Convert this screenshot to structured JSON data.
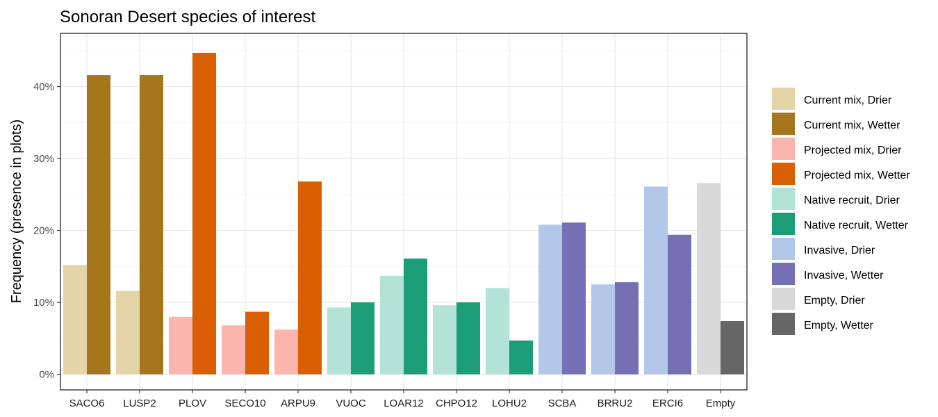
{
  "chart_data": {
    "type": "bar",
    "title": "Sonoran Desert species of interest",
    "xlabel": "",
    "ylabel": "Frequency (presence in plots)",
    "ylim": [
      0,
      0.47
    ],
    "yticks": [
      0,
      0.1,
      0.2,
      0.3,
      0.4
    ],
    "ytick_labels": [
      "0%",
      "10%",
      "20%",
      "30%",
      "40%"
    ],
    "grid": true,
    "legend_position": "right",
    "categories": [
      "SACO6",
      "LUSP2",
      "PLOV",
      "SECO10",
      "ARPU9",
      "VUOC",
      "LOAR12",
      "CHPO12",
      "LOHU2",
      "SCBA",
      "BRRU2",
      "ERCI6",
      "Empty"
    ],
    "legend": [
      {
        "name": "Current mix, Drier",
        "color": "#E5D4A7"
      },
      {
        "name": "Current mix, Wetter",
        "color": "#A6761D"
      },
      {
        "name": "Projected mix, Drier",
        "color": "#FBB4AE"
      },
      {
        "name": "Projected mix, Wetter",
        "color": "#D95F02"
      },
      {
        "name": "Native recruit, Drier",
        "color": "#B3E2D7"
      },
      {
        "name": "Native recruit, Wetter",
        "color": "#1B9E77"
      },
      {
        "name": "Invasive, Drier",
        "color": "#B3C7E8"
      },
      {
        "name": "Invasive, Wetter",
        "color": "#7570B3"
      },
      {
        "name": "Empty, Drier",
        "color": "#D9D9D9"
      },
      {
        "name": "Empty, Wetter",
        "color": "#666666"
      }
    ],
    "bars": [
      {
        "category": "SACO6",
        "drier": 0.152,
        "wetter": 0.416,
        "drier_group": 0,
        "wetter_group": 1
      },
      {
        "category": "LUSP2",
        "drier": 0.116,
        "wetter": 0.416,
        "drier_group": 0,
        "wetter_group": 1
      },
      {
        "category": "PLOV",
        "drier": 0.08,
        "wetter": 0.447,
        "drier_group": 2,
        "wetter_group": 3
      },
      {
        "category": "SECO10",
        "drier": 0.068,
        "wetter": 0.087,
        "drier_group": 2,
        "wetter_group": 3
      },
      {
        "category": "ARPU9",
        "drier": 0.062,
        "wetter": 0.268,
        "drier_group": 2,
        "wetter_group": 3
      },
      {
        "category": "VUOC",
        "drier": 0.093,
        "wetter": 0.1,
        "drier_group": 4,
        "wetter_group": 5
      },
      {
        "category": "LOAR12",
        "drier": 0.137,
        "wetter": 0.161,
        "drier_group": 4,
        "wetter_group": 5
      },
      {
        "category": "CHPO12",
        "drier": 0.096,
        "wetter": 0.1,
        "drier_group": 4,
        "wetter_group": 5
      },
      {
        "category": "LOHU2",
        "drier": 0.12,
        "wetter": 0.047,
        "drier_group": 4,
        "wetter_group": 5
      },
      {
        "category": "SCBA",
        "drier": 0.208,
        "wetter": 0.211,
        "drier_group": 6,
        "wetter_group": 7
      },
      {
        "category": "BRRU2",
        "drier": 0.125,
        "wetter": 0.128,
        "drier_group": 6,
        "wetter_group": 7
      },
      {
        "category": "ERCI6",
        "drier": 0.261,
        "wetter": 0.194,
        "drier_group": 6,
        "wetter_group": 7
      },
      {
        "category": "Empty",
        "drier": 0.266,
        "wetter": 0.074,
        "drier_group": 8,
        "wetter_group": 9
      }
    ]
  }
}
